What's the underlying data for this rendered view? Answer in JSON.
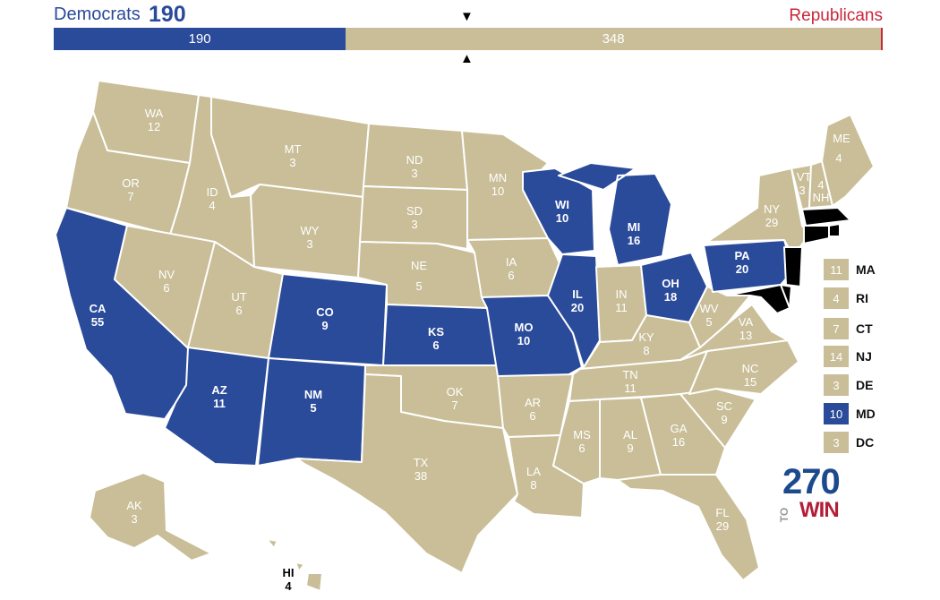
{
  "header": {
    "dem_label": "Democrats",
    "dem_total": "190",
    "rep_label": "Republicans",
    "marker_top": "▼",
    "marker_bottom": "▲"
  },
  "bar": {
    "dem_value": "190",
    "rep_value": "348",
    "dem_fraction": 0.353,
    "rep_fraction": 0.647
  },
  "colors": {
    "dem": "#2a4a9a",
    "rep": "#c9be98",
    "red_accent": "#c8273a",
    "state_border": "#ffffff"
  },
  "states": [
    {
      "abbr": "WA",
      "ev": "12",
      "party": "rep"
    },
    {
      "abbr": "OR",
      "ev": "7",
      "party": "rep"
    },
    {
      "abbr": "CA",
      "ev": "55",
      "party": "dem"
    },
    {
      "abbr": "ID",
      "ev": "4",
      "party": "rep"
    },
    {
      "abbr": "NV",
      "ev": "6",
      "party": "rep"
    },
    {
      "abbr": "MT",
      "ev": "3",
      "party": "rep"
    },
    {
      "abbr": "WY",
      "ev": "3",
      "party": "rep"
    },
    {
      "abbr": "UT",
      "ev": "6",
      "party": "rep"
    },
    {
      "abbr": "AZ",
      "ev": "11",
      "party": "dem"
    },
    {
      "abbr": "CO",
      "ev": "9",
      "party": "dem"
    },
    {
      "abbr": "NM",
      "ev": "5",
      "party": "dem"
    },
    {
      "abbr": "ND",
      "ev": "3",
      "party": "rep"
    },
    {
      "abbr": "SD",
      "ev": "3",
      "party": "rep"
    },
    {
      "abbr": "NE",
      "ev": "5",
      "party": "rep"
    },
    {
      "abbr": "KS",
      "ev": "6",
      "party": "dem"
    },
    {
      "abbr": "OK",
      "ev": "7",
      "party": "rep"
    },
    {
      "abbr": "TX",
      "ev": "38",
      "party": "rep"
    },
    {
      "abbr": "MN",
      "ev": "10",
      "party": "rep"
    },
    {
      "abbr": "IA",
      "ev": "6",
      "party": "rep"
    },
    {
      "abbr": "MO",
      "ev": "10",
      "party": "dem"
    },
    {
      "abbr": "AR",
      "ev": "6",
      "party": "rep"
    },
    {
      "abbr": "LA",
      "ev": "8",
      "party": "rep"
    },
    {
      "abbr": "WI",
      "ev": "10",
      "party": "dem"
    },
    {
      "abbr": "IL",
      "ev": "20",
      "party": "dem"
    },
    {
      "abbr": "MI",
      "ev": "16",
      "party": "dem"
    },
    {
      "abbr": "IN",
      "ev": "11",
      "party": "rep"
    },
    {
      "abbr": "OH",
      "ev": "18",
      "party": "dem"
    },
    {
      "abbr": "KY",
      "ev": "8",
      "party": "rep"
    },
    {
      "abbr": "TN",
      "ev": "11",
      "party": "rep"
    },
    {
      "abbr": "MS",
      "ev": "6",
      "party": "rep"
    },
    {
      "abbr": "AL",
      "ev": "9",
      "party": "rep"
    },
    {
      "abbr": "GA",
      "ev": "16",
      "party": "rep"
    },
    {
      "abbr": "FL",
      "ev": "29",
      "party": "rep"
    },
    {
      "abbr": "SC",
      "ev": "9",
      "party": "rep"
    },
    {
      "abbr": "NC",
      "ev": "15",
      "party": "rep"
    },
    {
      "abbr": "VA",
      "ev": "13",
      "party": "rep"
    },
    {
      "abbr": "WV",
      "ev": "5",
      "party": "rep"
    },
    {
      "abbr": "PA",
      "ev": "20",
      "party": "dem"
    },
    {
      "abbr": "NY",
      "ev": "29",
      "party": "rep"
    },
    {
      "abbr": "VT",
      "ev": "3",
      "party": "rep"
    },
    {
      "abbr": "NH",
      "ev": "4",
      "party": "rep"
    },
    {
      "abbr": "ME",
      "ev": "4",
      "party": "rep"
    },
    {
      "abbr": "AK",
      "ev": "3",
      "party": "rep"
    },
    {
      "abbr": "HI",
      "ev": "4",
      "party": "rep"
    }
  ],
  "legend": [
    {
      "abbr": "MA",
      "ev": "11",
      "party": "rep"
    },
    {
      "abbr": "RI",
      "ev": "4",
      "party": "rep"
    },
    {
      "abbr": "CT",
      "ev": "7",
      "party": "rep"
    },
    {
      "abbr": "NJ",
      "ev": "14",
      "party": "rep"
    },
    {
      "abbr": "DE",
      "ev": "3",
      "party": "rep"
    },
    {
      "abbr": "MD",
      "ev": "10",
      "party": "dem"
    },
    {
      "abbr": "DC",
      "ev": "3",
      "party": "rep"
    }
  ],
  "logo": {
    "number": "270",
    "to": "TO",
    "win": "WIN"
  }
}
